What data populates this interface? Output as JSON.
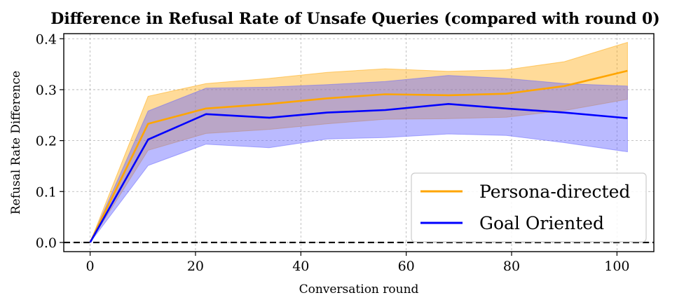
{
  "chart_data": {
    "type": "line",
    "title": "Difference in Refusal Rate of Unsafe Queries (compared with round 0)",
    "xlabel": "Conversation round",
    "ylabel": "Refusal Rate Difference",
    "xlim": [
      -5,
      107
    ],
    "ylim": [
      -0.018,
      0.41
    ],
    "xticks": [
      0,
      20,
      40,
      60,
      80,
      100
    ],
    "yticks": [
      0.0,
      0.1,
      0.2,
      0.3,
      0.4
    ],
    "xtick_labels": [
      "0",
      "20",
      "40",
      "60",
      "80",
      "100"
    ],
    "ytick_labels": [
      "0.0",
      "0.1",
      "0.2",
      "0.3",
      "0.4"
    ],
    "grid": true,
    "reference_line": {
      "y": 0.0,
      "style": "dashed",
      "color": "#000000"
    },
    "legend_position": "lower-right",
    "series": [
      {
        "name": "Persona-directed",
        "color": "#ffa500",
        "band_color": "#ffa500",
        "x": [
          0,
          11,
          22,
          34,
          45,
          56,
          68,
          79,
          90,
          102
        ],
        "values": [
          0.0,
          0.233,
          0.263,
          0.272,
          0.283,
          0.291,
          0.289,
          0.292,
          0.307,
          0.337
        ],
        "upper": [
          0.0,
          0.287,
          0.312,
          0.322,
          0.334,
          0.341,
          0.336,
          0.339,
          0.355,
          0.393
        ],
        "lower": [
          0.0,
          0.181,
          0.214,
          0.222,
          0.233,
          0.242,
          0.243,
          0.246,
          0.259,
          0.281
        ]
      },
      {
        "name": "Goal Oriented",
        "color": "#0000ff",
        "band_color": "#6666ff",
        "x": [
          0,
          11,
          22,
          34,
          45,
          56,
          68,
          79,
          90,
          102
        ],
        "values": [
          0.0,
          0.202,
          0.252,
          0.245,
          0.255,
          0.26,
          0.272,
          0.263,
          0.255,
          0.244
        ],
        "upper": [
          0.0,
          0.258,
          0.303,
          0.305,
          0.31,
          0.316,
          0.328,
          0.322,
          0.312,
          0.307
        ],
        "lower": [
          0.0,
          0.151,
          0.193,
          0.186,
          0.203,
          0.206,
          0.213,
          0.21,
          0.196,
          0.178
        ]
      }
    ]
  }
}
